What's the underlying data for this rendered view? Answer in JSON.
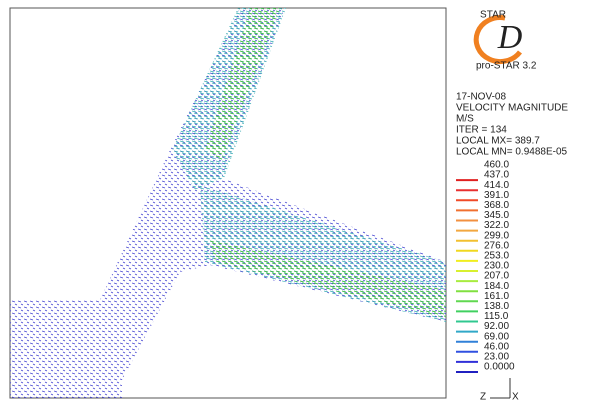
{
  "logo": {
    "top": "STAR",
    "letter": "D"
  },
  "product": "pro-STAR 3.2",
  "info": [
    "17-NOV-08",
    "VELOCITY MAGNITUDE",
    "M/S",
    "ITER =    134",
    "LOCAL MX=  389.7",
    "LOCAL MN= 0.9488E-05"
  ],
  "legend": [
    {
      "label": "460.0",
      "color": "#ffffff"
    },
    {
      "label": "437.0",
      "color": "#e02020"
    },
    {
      "label": "414.0",
      "color": "#e83030"
    },
    {
      "label": "391.0",
      "color": "#f04a28"
    },
    {
      "label": "368.0",
      "color": "#f07030"
    },
    {
      "label": "345.0",
      "color": "#f29040"
    },
    {
      "label": "322.0",
      "color": "#f2a840"
    },
    {
      "label": "299.0",
      "color": "#f2c030"
    },
    {
      "label": "276.0",
      "color": "#f0d820"
    },
    {
      "label": "253.0",
      "color": "#f0ee20"
    },
    {
      "label": "230.0",
      "color": "#d8f030"
    },
    {
      "label": "207.0",
      "color": "#a8ec40"
    },
    {
      "label": "184.0",
      "color": "#80e040"
    },
    {
      "label": "161.0",
      "color": "#60d850"
    },
    {
      "label": "138.0",
      "color": "#40d060"
    },
    {
      "label": "115.0",
      "color": "#30c890"
    },
    {
      "label": "92.00",
      "color": "#30a8c8"
    },
    {
      "label": "69.00",
      "color": "#3080d8"
    },
    {
      "label": "46.00",
      "color": "#3050e0"
    },
    {
      "label": "23.00",
      "color": "#3030d8"
    },
    {
      "label": "0.0000",
      "color": "#2020c0"
    }
  ],
  "axes": {
    "z": "Z",
    "x": "X"
  }
}
